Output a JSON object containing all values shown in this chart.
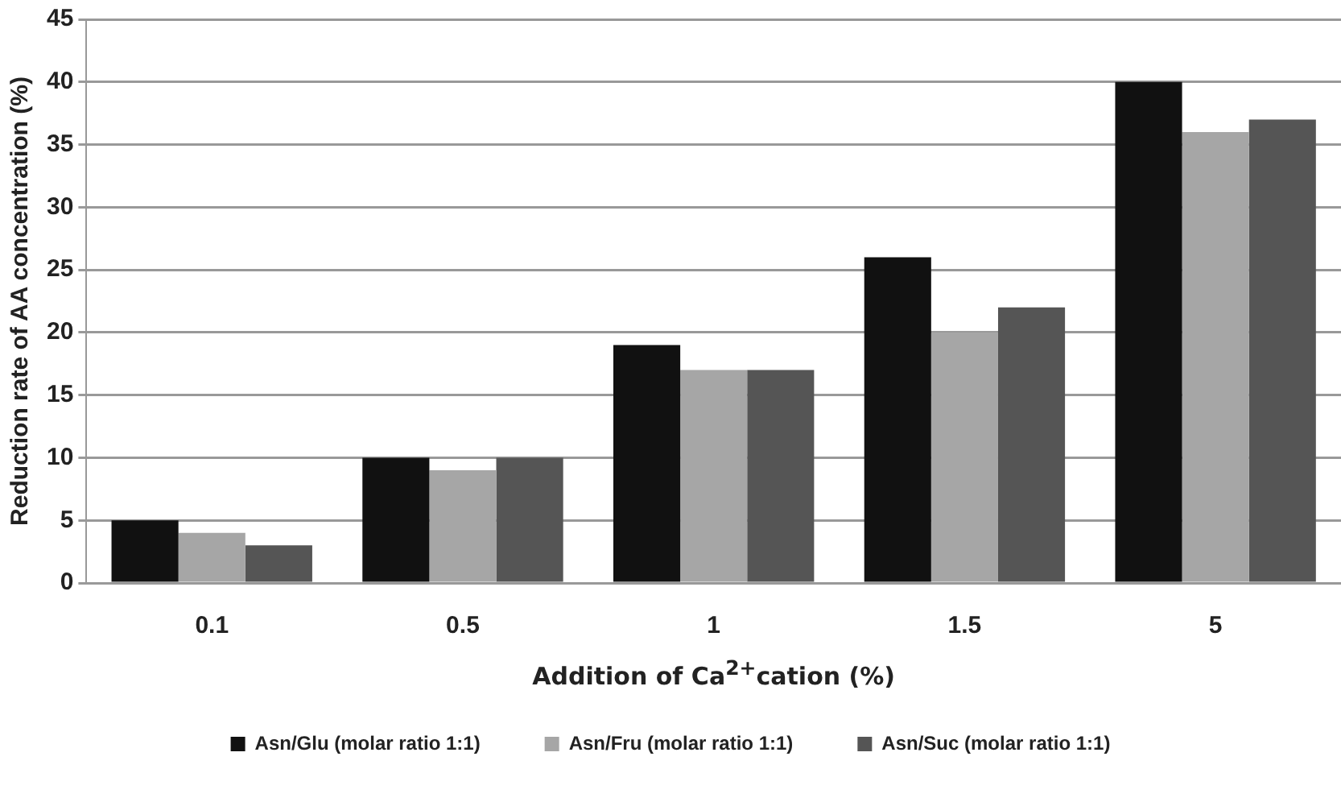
{
  "chart_data": {
    "type": "bar",
    "xlabel": "Addition of Ca$^{2+}$cation (%)",
    "ylabel": "Reduction rate of AA concentration (%)",
    "categories": [
      "0.1",
      "0.5",
      "1",
      "1.5",
      "5"
    ],
    "series": [
      {
        "name": "Asn/Glu (molar ratio 1:1)",
        "color": "#111111",
        "values": [
          5,
          10,
          19,
          26,
          40
        ]
      },
      {
        "name": "Asn/Fru (molar ratio 1:1)",
        "color": "#a6a6a6",
        "values": [
          4,
          9,
          17,
          20,
          36
        ]
      },
      {
        "name": "Asn/Suc (molar ratio 1:1)",
        "color": "#555555",
        "values": [
          3,
          10,
          17,
          22,
          37
        ]
      }
    ],
    "ylim": [
      0,
      45
    ],
    "yticks": [
      0,
      5,
      10,
      15,
      20,
      25,
      30,
      35,
      40,
      45
    ],
    "grid": "y",
    "legend": "bottom"
  }
}
